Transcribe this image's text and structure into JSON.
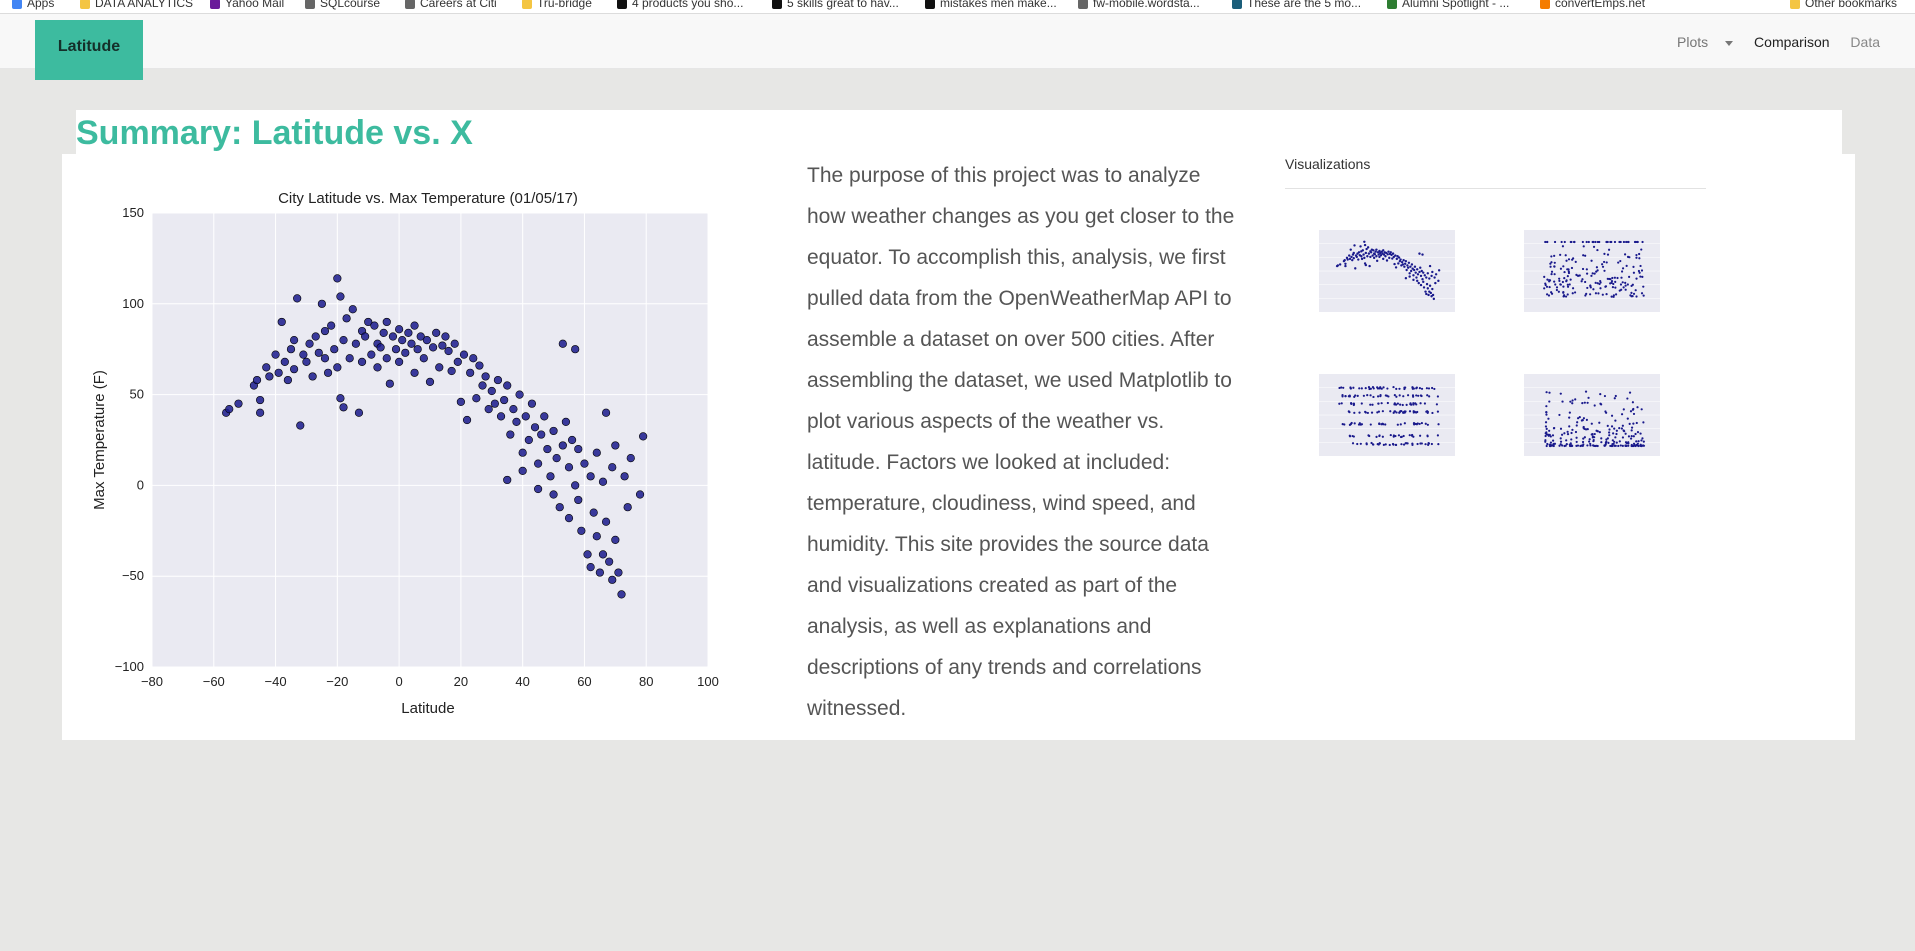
{
  "bookmarks": [
    "Apps",
    "DATA ANALYTICS",
    "Yahoo Mail",
    "SQLcourse",
    "Careers at Citi",
    "Tru-bridge",
    "4 products you sho...",
    "5 skills great to hav...",
    "mistakes men make...",
    "fw-mobile.wordsta...",
    "These are the 5 mo...",
    "Alumni Spotlight - ...",
    "convertEmps.net",
    "Other bookmarks"
  ],
  "navbar": {
    "brand": "Latitude",
    "plots": "Plots",
    "comparison": "Comparison",
    "data": "Data"
  },
  "page": {
    "title": "Summary: Latitude vs. X",
    "paragraph": "The purpose of this project was to analyze how weather changes as you get closer to the equator. To accomplish this, analysis, we first pulled data from the OpenWeatherMap API to assemble a dataset on over 500 cities. After assembling the dataset, we used Matplotlib to plot various aspects of the weather vs. latitude. Factors we looked at included: temperature, cloudiness, wind speed, and humidity. This site provides the source data and visualizations created as part of the analysis, as well as explanations and descriptions of any trends and correlations witnessed."
  },
  "visualizations": {
    "heading": "Visualizations",
    "thumbnails": [
      "temperature-plot",
      "humidity-plot",
      "cloudiness-plot",
      "wind-speed-plot"
    ]
  },
  "colors": {
    "accent": "#3dbb9f",
    "point": "#1a1a8c",
    "plot_bg": "#eaeaf2"
  },
  "chart_data": {
    "type": "scatter",
    "title": "City Latitude vs. Max Temperature (01/05/17)",
    "xlabel": "Latitude",
    "ylabel": "Max Temperature (F)",
    "xlim": [
      -80,
      100
    ],
    "ylim": [
      -100,
      150
    ],
    "xticks": [
      -80,
      -60,
      -40,
      -20,
      0,
      20,
      40,
      60,
      80,
      100
    ],
    "yticks": [
      -100,
      -50,
      0,
      50,
      100,
      150
    ],
    "grid": true,
    "points": [
      [
        -56,
        40
      ],
      [
        -55,
        42
      ],
      [
        -52,
        45
      ],
      [
        -47,
        55
      ],
      [
        -46,
        58
      ],
      [
        -45,
        40
      ],
      [
        -45,
        47
      ],
      [
        -43,
        65
      ],
      [
        -42,
        60
      ],
      [
        -40,
        72
      ],
      [
        -39,
        62
      ],
      [
        -38,
        90
      ],
      [
        -37,
        68
      ],
      [
        -36,
        58
      ],
      [
        -35,
        75
      ],
      [
        -34,
        80
      ],
      [
        -34,
        64
      ],
      [
        -33,
        103
      ],
      [
        -32,
        33
      ],
      [
        -31,
        72
      ],
      [
        -30,
        68
      ],
      [
        -29,
        78
      ],
      [
        -28,
        60
      ],
      [
        -27,
        82
      ],
      [
        -26,
        73
      ],
      [
        -25,
        100
      ],
      [
        -24,
        85
      ],
      [
        -24,
        70
      ],
      [
        -23,
        62
      ],
      [
        -22,
        88
      ],
      [
        -21,
        75
      ],
      [
        -20,
        114
      ],
      [
        -20,
        65
      ],
      [
        -19,
        104
      ],
      [
        -19,
        48
      ],
      [
        -18,
        80
      ],
      [
        -18,
        43
      ],
      [
        -17,
        92
      ],
      [
        -16,
        70
      ],
      [
        -15,
        97
      ],
      [
        -14,
        78
      ],
      [
        -13,
        40
      ],
      [
        -12,
        85
      ],
      [
        -12,
        68
      ],
      [
        -11,
        82
      ],
      [
        -10,
        90
      ],
      [
        -9,
        72
      ],
      [
        -8,
        88
      ],
      [
        -7,
        78
      ],
      [
        -7,
        65
      ],
      [
        -6,
        76
      ],
      [
        -5,
        84
      ],
      [
        -4,
        90
      ],
      [
        -4,
        70
      ],
      [
        -3,
        56
      ],
      [
        -2,
        82
      ],
      [
        -1,
        75
      ],
      [
        0,
        86
      ],
      [
        0,
        68
      ],
      [
        1,
        80
      ],
      [
        2,
        73
      ],
      [
        3,
        84
      ],
      [
        4,
        78
      ],
      [
        5,
        88
      ],
      [
        5,
        62
      ],
      [
        6,
        75
      ],
      [
        7,
        82
      ],
      [
        8,
        70
      ],
      [
        9,
        80
      ],
      [
        10,
        57
      ],
      [
        11,
        76
      ],
      [
        12,
        84
      ],
      [
        13,
        65
      ],
      [
        14,
        77
      ],
      [
        15,
        82
      ],
      [
        16,
        74
      ],
      [
        17,
        63
      ],
      [
        18,
        78
      ],
      [
        19,
        68
      ],
      [
        20,
        46
      ],
      [
        21,
        72
      ],
      [
        22,
        36
      ],
      [
        23,
        62
      ],
      [
        24,
        70
      ],
      [
        25,
        48
      ],
      [
        26,
        66
      ],
      [
        27,
        55
      ],
      [
        28,
        60
      ],
      [
        29,
        42
      ],
      [
        30,
        52
      ],
      [
        31,
        45
      ],
      [
        32,
        58
      ],
      [
        33,
        38
      ],
      [
        34,
        47
      ],
      [
        35,
        55
      ],
      [
        35,
        3
      ],
      [
        36,
        28
      ],
      [
        37,
        42
      ],
      [
        38,
        35
      ],
      [
        39,
        50
      ],
      [
        40,
        18
      ],
      [
        40,
        8
      ],
      [
        41,
        38
      ],
      [
        42,
        25
      ],
      [
        43,
        45
      ],
      [
        44,
        32
      ],
      [
        45,
        12
      ],
      [
        45,
        -2
      ],
      [
        46,
        28
      ],
      [
        47,
        38
      ],
      [
        48,
        20
      ],
      [
        49,
        5
      ],
      [
        50,
        30
      ],
      [
        50,
        -5
      ],
      [
        51,
        15
      ],
      [
        52,
        -12
      ],
      [
        53,
        22
      ],
      [
        53,
        78
      ],
      [
        54,
        35
      ],
      [
        55,
        10
      ],
      [
        55,
        -18
      ],
      [
        56,
        25
      ],
      [
        57,
        0
      ],
      [
        57,
        75
      ],
      [
        58,
        -8
      ],
      [
        58,
        20
      ],
      [
        59,
        -25
      ],
      [
        60,
        12
      ],
      [
        61,
        -38
      ],
      [
        62,
        5
      ],
      [
        62,
        -45
      ],
      [
        63,
        -15
      ],
      [
        64,
        18
      ],
      [
        64,
        -28
      ],
      [
        65,
        -48
      ],
      [
        66,
        2
      ],
      [
        66,
        -38
      ],
      [
        67,
        40
      ],
      [
        67,
        -20
      ],
      [
        68,
        -42
      ],
      [
        69,
        10
      ],
      [
        69,
        -52
      ],
      [
        70,
        -30
      ],
      [
        70,
        22
      ],
      [
        71,
        -48
      ],
      [
        72,
        -60
      ],
      [
        73,
        5
      ],
      [
        74,
        -12
      ],
      [
        75,
        15
      ],
      [
        78,
        -5
      ],
      [
        79,
        27
      ]
    ]
  }
}
